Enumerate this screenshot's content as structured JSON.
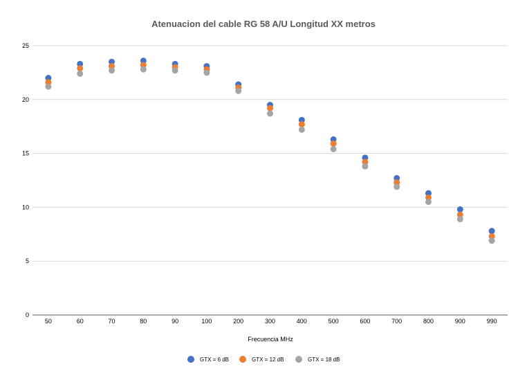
{
  "chart_data": {
    "type": "scatter",
    "title": "Atenuacion del cable RG 58 A/U Longitud XX metros",
    "xlabel": "Frecuencia MHz",
    "ylabel": "",
    "categories": [
      "50",
      "60",
      "70",
      "80",
      "90",
      "100",
      "200",
      "300",
      "400",
      "500",
      "600",
      "700",
      "800",
      "900",
      "990"
    ],
    "ylim": [
      0,
      25
    ],
    "yticks": [
      0,
      5,
      10,
      15,
      20,
      25
    ],
    "grid": true,
    "legend_position": "bottom",
    "series": [
      {
        "name": "GTX = 6 dB",
        "color": "#4472c4",
        "values": [
          22.0,
          23.3,
          23.5,
          23.6,
          23.3,
          23.1,
          21.4,
          19.5,
          18.1,
          16.3,
          14.6,
          12.7,
          11.3,
          9.8,
          7.8
        ]
      },
      {
        "name": "GTX = 12 dB",
        "color": "#ed7d31",
        "values": [
          21.6,
          22.9,
          23.1,
          23.2,
          23.0,
          22.8,
          21.1,
          19.2,
          17.7,
          15.9,
          14.2,
          12.3,
          10.9,
          9.3,
          7.3
        ]
      },
      {
        "name": "GTX = 18 dB",
        "color": "#a5a5a5",
        "values": [
          21.2,
          22.4,
          22.7,
          22.8,
          22.7,
          22.5,
          20.8,
          18.7,
          17.2,
          15.4,
          13.8,
          11.9,
          10.5,
          8.9,
          6.9
        ]
      }
    ]
  }
}
